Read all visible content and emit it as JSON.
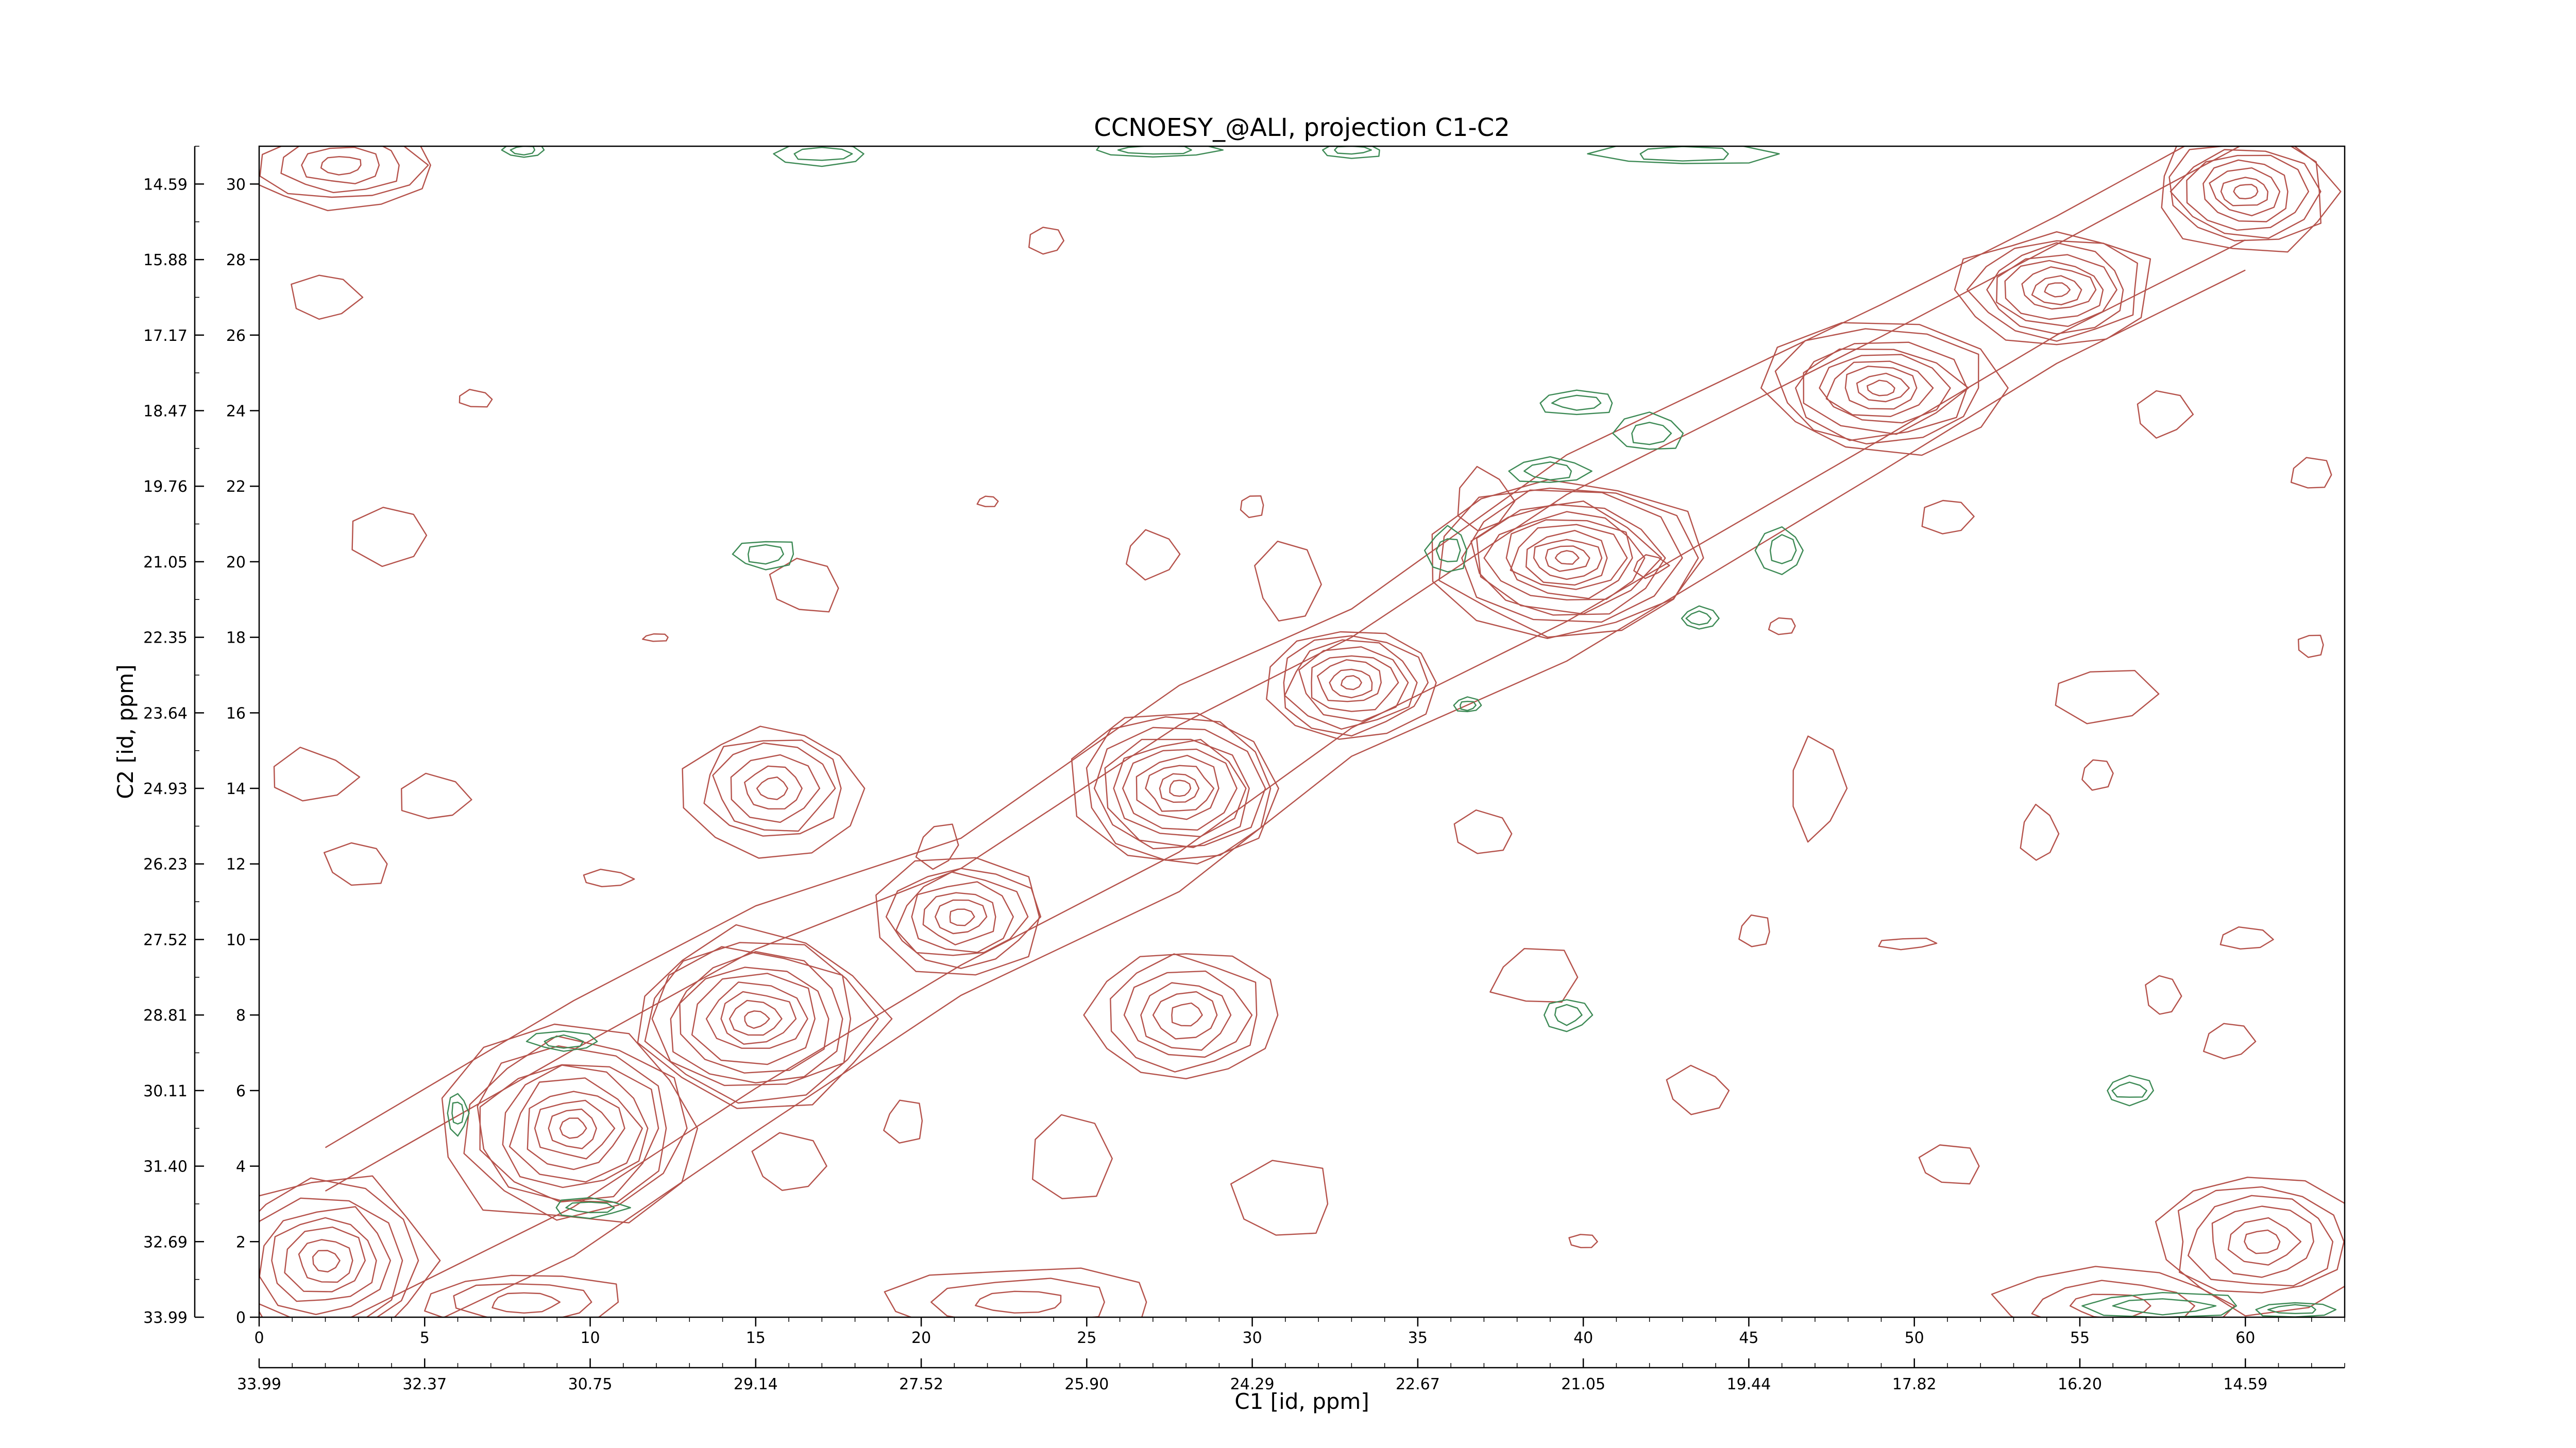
{
  "chart_data": {
    "type": "contour",
    "title": "CCNOESY_@ALI, projection C1-C2",
    "xlabel": "C1 [id, ppm]",
    "ylabel": "C2 [id, ppm]",
    "x_index_range": [
      0,
      63
    ],
    "y_index_range": [
      0,
      31
    ],
    "x_index_ticks": [
      "0",
      "5",
      "10",
      "15",
      "20",
      "25",
      "30",
      "35",
      "40",
      "45",
      "50",
      "55",
      "60"
    ],
    "x_ppm_ticks": [
      "33.99",
      "32.37",
      "30.75",
      "29.14",
      "27.52",
      "25.90",
      "24.29",
      "22.67",
      "21.05",
      "19.44",
      "17.82",
      "16.20",
      "14.59"
    ],
    "y_index_ticks": [
      "0",
      "2",
      "4",
      "6",
      "8",
      "10",
      "12",
      "14",
      "16",
      "18",
      "20",
      "22",
      "24",
      "26",
      "28",
      "30"
    ],
    "y_ppm_ticks": [
      "33.99",
      "32.69",
      "31.40",
      "30.11",
      "28.81",
      "27.52",
      "26.23",
      "24.93",
      "23.64",
      "22.35",
      "21.05",
      "19.76",
      "18.47",
      "17.17",
      "15.88",
      "14.59"
    ],
    "colors": {
      "positive": "#b5524b",
      "negative": "#3d8a55"
    },
    "diagonal_peaks": [
      {
        "x": 2.0,
        "y": 1.5,
        "rx": 3.2,
        "ry": 2.3,
        "levels": 8
      },
      {
        "x": 9.5,
        "y": 5.0,
        "rx": 3.8,
        "ry": 2.6,
        "levels": 10
      },
      {
        "x": 15.0,
        "y": 7.9,
        "rx": 3.8,
        "ry": 2.3,
        "levels": 10
      },
      {
        "x": 21.2,
        "y": 10.6,
        "rx": 2.6,
        "ry": 1.6,
        "levels": 7
      },
      {
        "x": 27.8,
        "y": 14.0,
        "rx": 3.2,
        "ry": 2.1,
        "levels": 10
      },
      {
        "x": 33.0,
        "y": 16.8,
        "rx": 2.6,
        "ry": 1.5,
        "levels": 8
      },
      {
        "x": 39.5,
        "y": 20.1,
        "rx": 4.0,
        "ry": 2.1,
        "levels": 12
      },
      {
        "x": 49.0,
        "y": 24.6,
        "rx": 3.6,
        "ry": 1.7,
        "levels": 9
      },
      {
        "x": 54.3,
        "y": 27.2,
        "rx": 3.0,
        "ry": 1.5,
        "levels": 8
      },
      {
        "x": 60.0,
        "y": 29.8,
        "rx": 2.8,
        "ry": 1.6,
        "levels": 8
      }
    ],
    "cross_peaks": [
      {
        "x": 15.5,
        "y": 14.0,
        "rx": 2.6,
        "ry": 1.7,
        "levels": 6
      },
      {
        "x": 28.0,
        "y": 8.0,
        "rx": 2.8,
        "ry": 1.8,
        "levels": 6
      },
      {
        "x": 2.5,
        "y": 30.5,
        "rx": 3.0,
        "ry": 1.2,
        "levels": 5
      },
      {
        "x": 60.5,
        "y": 2.0,
        "rx": 3.2,
        "ry": 1.8,
        "levels": 6
      },
      {
        "x": 56.0,
        "y": 0.3,
        "rx": 3.5,
        "ry": 1.0,
        "levels": 3
      },
      {
        "x": 23.0,
        "y": 0.4,
        "rx": 4.0,
        "ry": 0.9,
        "levels": 3
      },
      {
        "x": 8.0,
        "y": 0.4,
        "rx": 3.0,
        "ry": 0.8,
        "levels": 3
      }
    ],
    "small_contours": [
      [
        2,
        27,
        1.0,
        0.7
      ],
      [
        4,
        20.7,
        1.2,
        0.8
      ],
      [
        6.5,
        24.3,
        0.6,
        0.25
      ],
      [
        10.5,
        11.6,
        0.8,
        0.25
      ],
      [
        5.3,
        13.7,
        1.0,
        0.6
      ],
      [
        3.0,
        12.0,
        1.0,
        0.6
      ],
      [
        1.6,
        14.3,
        1.4,
        0.7
      ],
      [
        16.0,
        4.0,
        1.1,
        0.8
      ],
      [
        19.5,
        5.2,
        0.6,
        0.5
      ],
      [
        24.5,
        4.2,
        1.1,
        1.1
      ],
      [
        23.8,
        28.5,
        0.6,
        0.4
      ],
      [
        27.0,
        20.2,
        0.9,
        0.6
      ],
      [
        31.0,
        3.0,
        1.5,
        1.0
      ],
      [
        37.0,
        12.8,
        1.0,
        0.6
      ],
      [
        38.5,
        9.0,
        1.3,
        0.8
      ],
      [
        43.5,
        6.0,
        1.0,
        0.6
      ],
      [
        45.2,
        10.2,
        0.5,
        0.4
      ],
      [
        49.8,
        9.9,
        0.8,
        0.15
      ],
      [
        47.0,
        14.0,
        0.8,
        1.2
      ],
      [
        51.0,
        4.0,
        0.9,
        0.5
      ],
      [
        53.8,
        12.8,
        0.6,
        0.8
      ],
      [
        55.5,
        14.4,
        0.5,
        0.4
      ],
      [
        57.5,
        8.5,
        0.5,
        0.6
      ],
      [
        60.0,
        10.0,
        0.8,
        0.3
      ],
      [
        59.5,
        7.3,
        0.7,
        0.5
      ],
      [
        62.0,
        22.3,
        0.6,
        0.4
      ],
      [
        51.0,
        21.2,
        0.7,
        0.5
      ],
      [
        55.6,
        16.5,
        1.5,
        0.7
      ],
      [
        57.5,
        23.9,
        0.8,
        0.6
      ],
      [
        62.0,
        17.8,
        0.4,
        0.3
      ],
      [
        12.0,
        18.0,
        0.4,
        0.1
      ],
      [
        16.5,
        19.3,
        1.0,
        0.7
      ],
      [
        22.0,
        21.6,
        0.3,
        0.15
      ],
      [
        30.0,
        21.5,
        0.4,
        0.3
      ],
      [
        46.0,
        18.3,
        0.4,
        0.2
      ],
      [
        20.5,
        12.5,
        0.6,
        0.6
      ],
      [
        31.0,
        19.4,
        0.9,
        1.0
      ],
      [
        37.0,
        21.6,
        0.8,
        0.8
      ],
      [
        40.0,
        2.0,
        0.4,
        0.2
      ],
      [
        42.0,
        19.9,
        0.5,
        0.3
      ]
    ],
    "negative_contours": [
      [
        15.3,
        20.2,
        1.0,
        0.4
      ],
      [
        9.2,
        7.3,
        1.0,
        0.25
      ],
      [
        10.0,
        2.9,
        1.1,
        0.25
      ],
      [
        6.0,
        5.4,
        0.3,
        0.55
      ],
      [
        39.0,
        22.4,
        1.2,
        0.35
      ],
      [
        35.9,
        20.3,
        0.6,
        0.6
      ],
      [
        46.0,
        20.3,
        0.7,
        0.6
      ],
      [
        43.5,
        18.5,
        0.6,
        0.3
      ],
      [
        42.0,
        23.4,
        1.0,
        0.5
      ],
      [
        39.8,
        24.2,
        1.2,
        0.3
      ],
      [
        36.5,
        16.2,
        0.4,
        0.2
      ],
      [
        39.5,
        8.0,
        0.7,
        0.4
      ],
      [
        56.5,
        6.0,
        0.8,
        0.35
      ],
      [
        57.5,
        0.3,
        2.5,
        0.35
      ],
      [
        8.0,
        30.9,
        0.6,
        0.2
      ],
      [
        17.0,
        30.8,
        1.5,
        0.3
      ],
      [
        43.0,
        30.8,
        2.5,
        0.3
      ],
      [
        27.0,
        30.9,
        2.0,
        0.2
      ],
      [
        33.0,
        30.9,
        1.0,
        0.2
      ],
      [
        61.5,
        0.2,
        1.2,
        0.2
      ]
    ]
  }
}
